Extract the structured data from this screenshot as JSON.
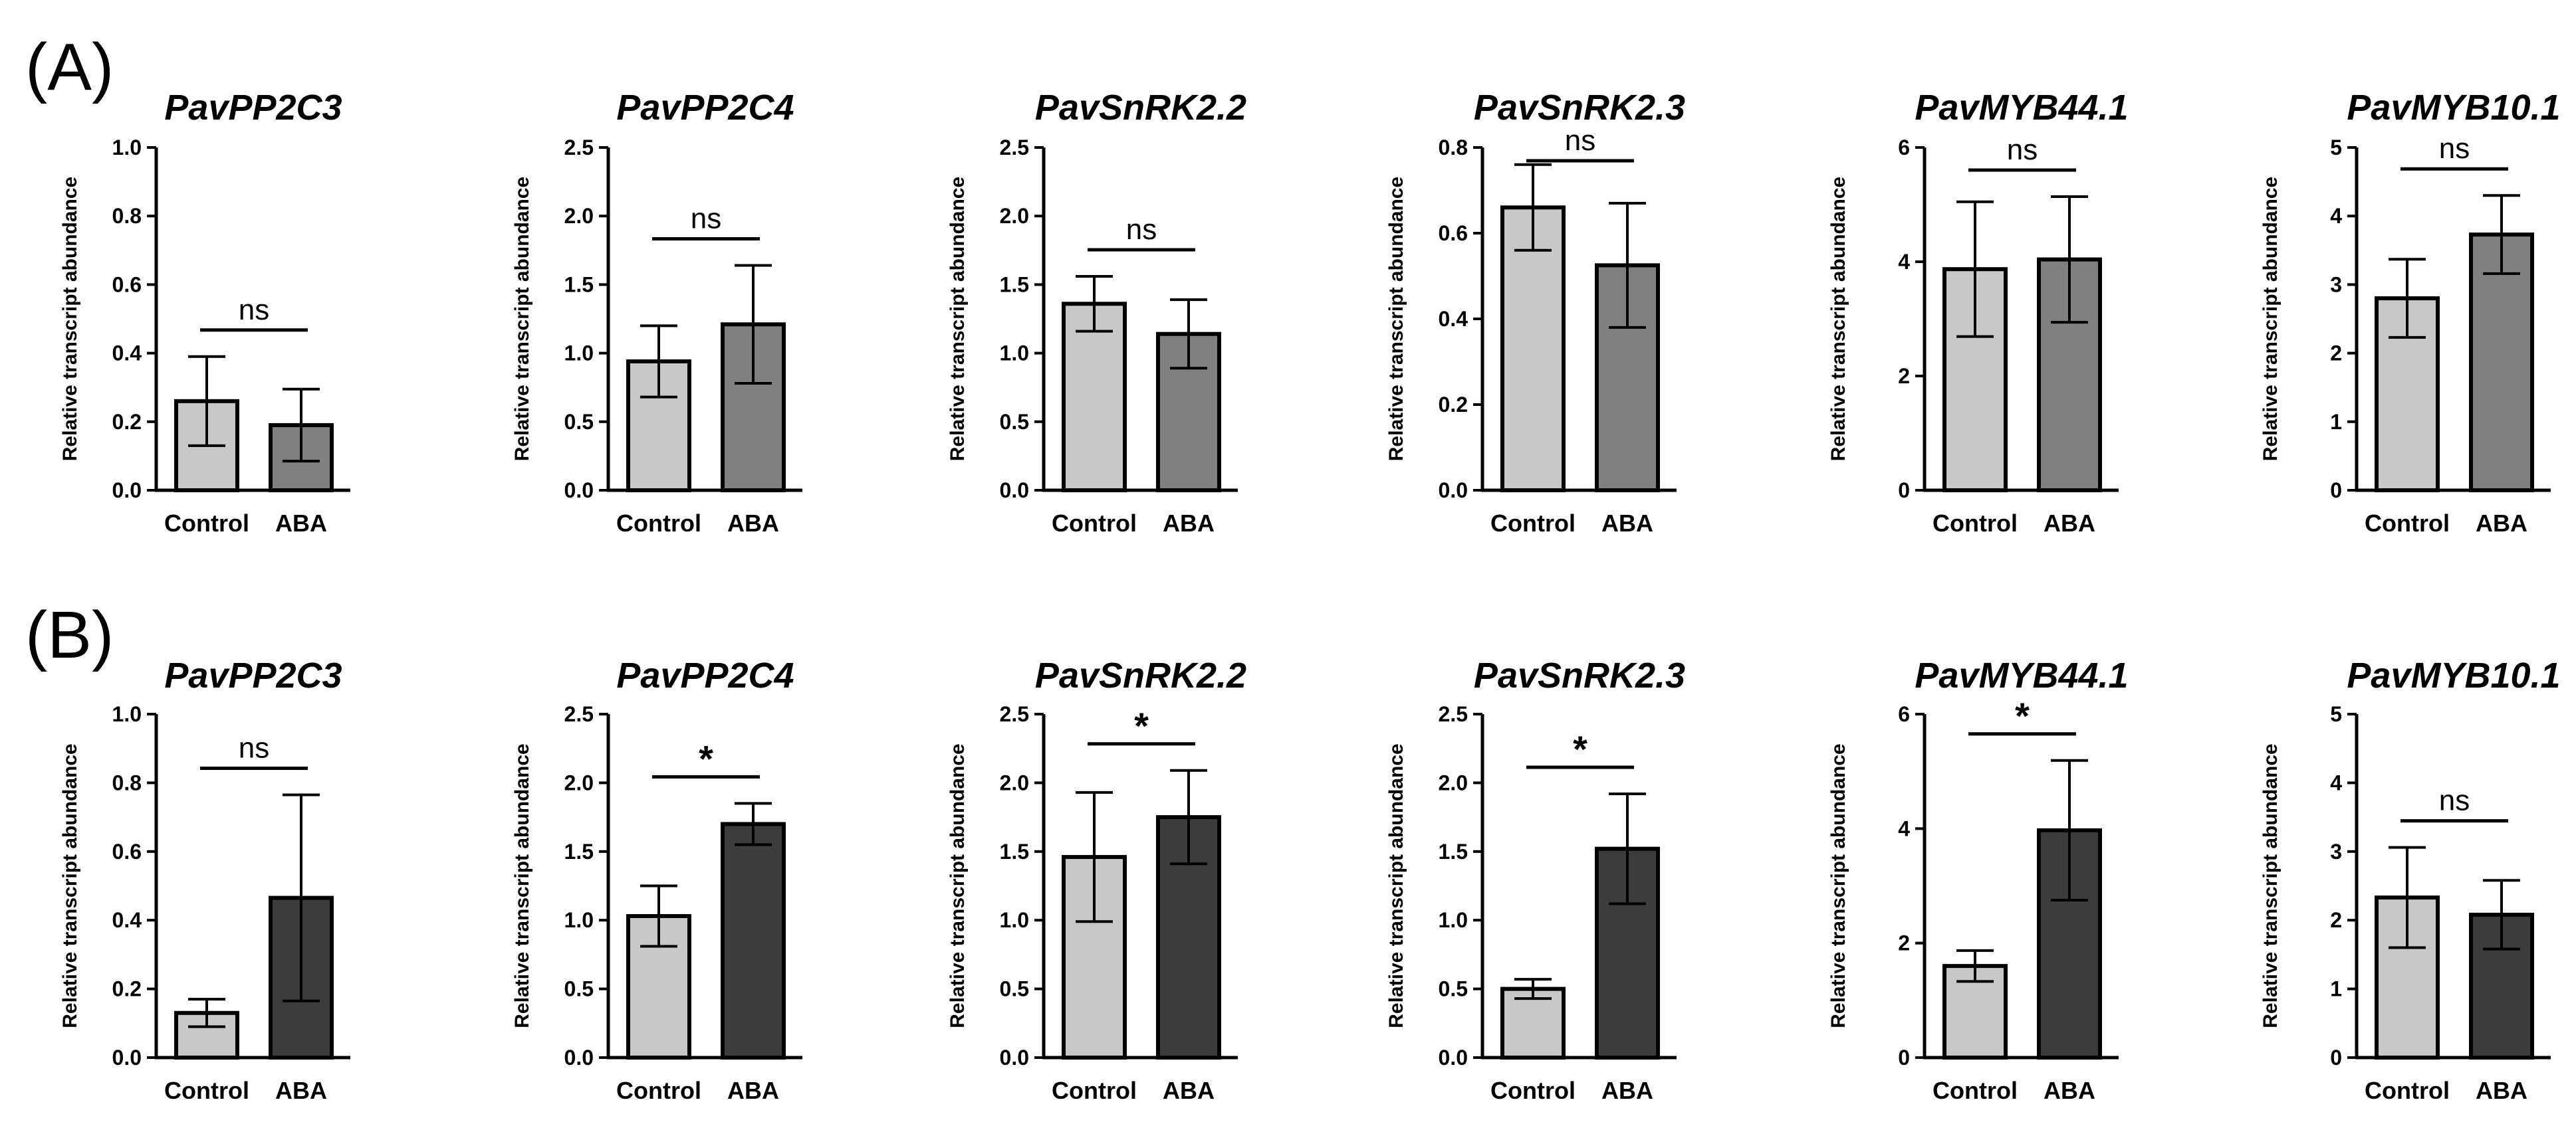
{
  "panels": [
    {
      "label": "(A)",
      "control_color": "#c8c8c8",
      "aba_color": "#808080"
    },
    {
      "label": "(B)",
      "control_color": "#c8c8c8",
      "aba_color": "#3c3c3c"
    }
  ],
  "chart_data": [
    {
      "type": "bar",
      "panel": "(A)",
      "title": "PavPP2C3",
      "ylabel": "Relative transcript abundance",
      "categories": [
        "Control",
        "ABA"
      ],
      "values": [
        0.26,
        0.19
      ],
      "errors": [
        0.13,
        0.105
      ],
      "ylim": [
        0,
        1.0
      ],
      "yticks": [
        "0.0",
        "0.2",
        "0.4",
        "0.6",
        "0.8",
        "1.0"
      ],
      "significance": "ns"
    },
    {
      "type": "bar",
      "panel": "(A)",
      "title": "PavPP2C4",
      "ylabel": "Relative transcript abundance",
      "categories": [
        "Control",
        "ABA"
      ],
      "values": [
        0.94,
        1.21
      ],
      "errors": [
        0.26,
        0.43
      ],
      "ylim": [
        0,
        2.5
      ],
      "yticks": [
        "0.0",
        "0.5",
        "1.0",
        "1.5",
        "2.0",
        "2.5"
      ],
      "significance": "ns"
    },
    {
      "type": "bar",
      "panel": "(A)",
      "title": "PavSnRK2.2",
      "ylabel": "Relative transcript abundance",
      "categories": [
        "Control",
        "ABA"
      ],
      "values": [
        1.36,
        1.14
      ],
      "errors": [
        0.2,
        0.25
      ],
      "ylim": [
        0,
        2.5
      ],
      "yticks": [
        "0.0",
        "0.5",
        "1.0",
        "1.5",
        "2.0",
        "2.5"
      ],
      "significance": "ns"
    },
    {
      "type": "bar",
      "panel": "(A)",
      "title": "PavSnRK2.3",
      "ylabel": "Relative transcript abundance",
      "categories": [
        "Control",
        "ABA"
      ],
      "values": [
        0.66,
        0.525
      ],
      "errors": [
        0.1,
        0.145
      ],
      "ylim": [
        0,
        0.8
      ],
      "yticks": [
        "0.0",
        "0.2",
        "0.4",
        "0.6",
        "0.8"
      ],
      "significance": "ns"
    },
    {
      "type": "bar",
      "panel": "(A)",
      "title": "PavMYB44.1",
      "ylabel": "Relative transcript abundance",
      "categories": [
        "Control",
        "ABA"
      ],
      "values": [
        3.87,
        4.04
      ],
      "errors": [
        1.18,
        1.1
      ],
      "ylim": [
        0,
        6
      ],
      "yticks": [
        "0",
        "2",
        "4",
        "6"
      ],
      "significance": "ns"
    },
    {
      "type": "bar",
      "panel": "(A)",
      "title": "PavMYB10.1",
      "ylabel": "Relative transcript abundance",
      "categories": [
        "Control",
        "ABA"
      ],
      "values": [
        2.8,
        3.73
      ],
      "errors": [
        0.57,
        0.57
      ],
      "ylim": [
        0,
        5
      ],
      "yticks": [
        "0",
        "1",
        "2",
        "3",
        "4",
        "5"
      ],
      "significance": "ns"
    },
    {
      "type": "bar",
      "panel": "(B)",
      "title": "PavPP2C3",
      "ylabel": "Relative transcript abundance",
      "categories": [
        "Control",
        "ABA"
      ],
      "values": [
        0.13,
        0.465
      ],
      "errors": [
        0.04,
        0.3
      ],
      "ylim": [
        0,
        1.0
      ],
      "yticks": [
        "0.0",
        "0.2",
        "0.4",
        "0.6",
        "0.8",
        "1.0"
      ],
      "significance": "ns"
    },
    {
      "type": "bar",
      "panel": "(B)",
      "title": "PavPP2C4",
      "ylabel": "Relative transcript abundance",
      "categories": [
        "Control",
        "ABA"
      ],
      "values": [
        1.03,
        1.7
      ],
      "errors": [
        0.22,
        0.15
      ],
      "ylim": [
        0,
        2.5
      ],
      "yticks": [
        "0.0",
        "0.5",
        "1.0",
        "1.5",
        "2.0",
        "2.5"
      ],
      "significance": "*"
    },
    {
      "type": "bar",
      "panel": "(B)",
      "title": "PavSnRK2.2",
      "ylabel": "Relative transcript abundance",
      "categories": [
        "Control",
        "ABA"
      ],
      "values": [
        1.46,
        1.75
      ],
      "errors": [
        0.47,
        0.34
      ],
      "ylim": [
        0,
        2.5
      ],
      "yticks": [
        "0.0",
        "0.5",
        "1.0",
        "1.5",
        "2.0",
        "2.5"
      ],
      "significance": "*"
    },
    {
      "type": "bar",
      "panel": "(B)",
      "title": "PavSnRK2.3",
      "ylabel": "Relative transcript abundance",
      "categories": [
        "Control",
        "ABA"
      ],
      "values": [
        0.5,
        1.52
      ],
      "errors": [
        0.07,
        0.4
      ],
      "ylim": [
        0,
        2.5
      ],
      "yticks": [
        "0.0",
        "0.5",
        "1.0",
        "1.5",
        "2.0",
        "2.5"
      ],
      "significance": "*"
    },
    {
      "type": "bar",
      "panel": "(B)",
      "title": "PavMYB44.1",
      "ylabel": "Relative transcript abundance",
      "categories": [
        "Control",
        "ABA"
      ],
      "values": [
        1.6,
        3.97
      ],
      "errors": [
        0.27,
        1.22
      ],
      "ylim": [
        0,
        6
      ],
      "yticks": [
        "0",
        "2",
        "4",
        "6"
      ],
      "significance": "*"
    },
    {
      "type": "bar",
      "panel": "(B)",
      "title": "PavMYB10.1",
      "ylabel": "Relative transcript abundance",
      "categories": [
        "Control",
        "ABA"
      ],
      "values": [
        2.33,
        2.08
      ],
      "errors": [
        0.73,
        0.5
      ],
      "ylim": [
        0,
        5
      ],
      "yticks": [
        "0",
        "1",
        "2",
        "3",
        "4",
        "5"
      ],
      "significance": "ns"
    }
  ]
}
